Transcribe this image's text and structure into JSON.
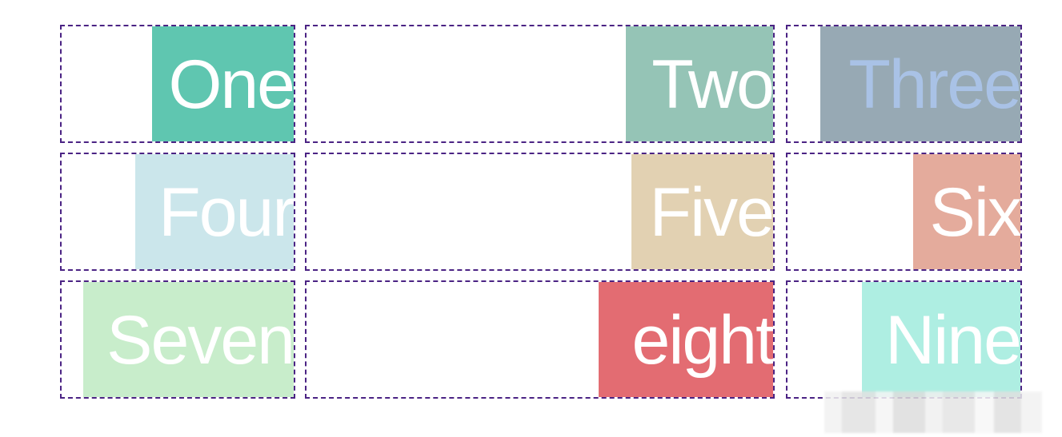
{
  "items": [
    {
      "label": "One",
      "color": "#5fc6b0"
    },
    {
      "label": "Two",
      "color": "#95c4b6"
    },
    {
      "label": "Three",
      "color": "#97a9b4"
    },
    {
      "label": "Four",
      "color": "#cbe6eb"
    },
    {
      "label": "Five",
      "color": "#e2d1b2"
    },
    {
      "label": "Six",
      "color": "#e4ab9c"
    },
    {
      "label": "Seven",
      "color": "#c8edcb"
    },
    {
      "label": "eight",
      "color": "#e36c72"
    },
    {
      "label": "Nine",
      "color": "#aeeee2"
    }
  ],
  "grid_border_color": "#4b2384"
}
